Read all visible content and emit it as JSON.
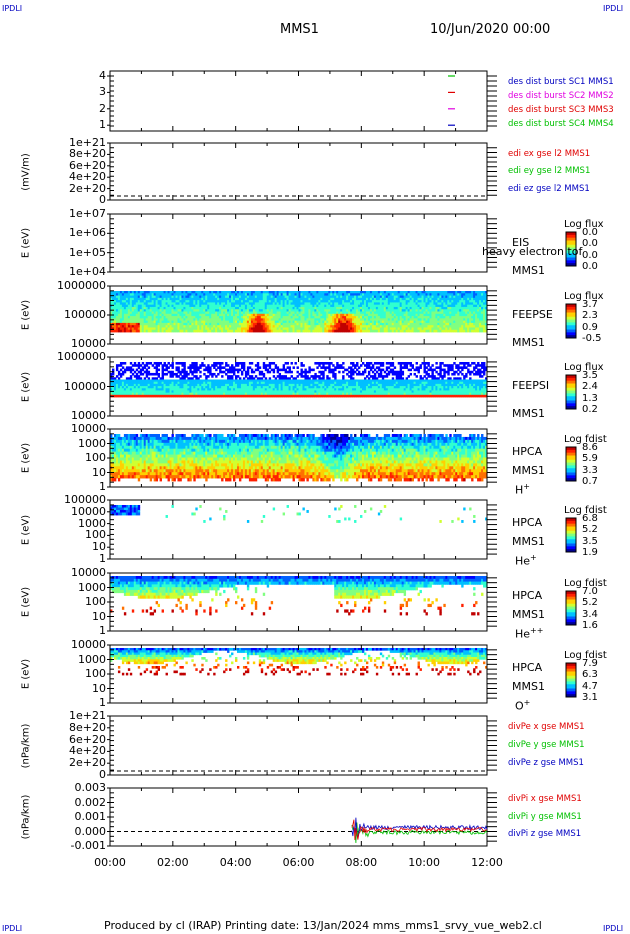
{
  "corner_labels": {
    "top_left": "IPDLI",
    "top_right": "IPDLI",
    "bottom_left": "IPDLI",
    "bottom_right": "IPDLI"
  },
  "header": {
    "mission": "MMS1",
    "datetime": "10/Jun/2020 00:00"
  },
  "footer": {
    "text": "Produced by cl (IRAP)   Printing date: 13/Jan/2024   mms_mms1_srvy_vue_web2.cl"
  },
  "colors": {
    "red": "#e00000",
    "green": "#00c000",
    "blue": "#0000c0",
    "magenta": "#e000e0"
  },
  "chart_data": {
    "type": "multi-panel time series",
    "x_range": [
      "00:00",
      "12:00"
    ],
    "x_ticks": [
      "00:00",
      "02:00",
      "04:00",
      "06:00",
      "08:00",
      "10:00",
      "12:00"
    ],
    "panels": [
      {
        "name": "burst",
        "ylabel": "",
        "yticks": [
          "4",
          "3",
          "2",
          "1"
        ],
        "legend": [
          {
            "text": "des dist burst SC1 MMS1",
            "color": "#0000c0"
          },
          {
            "text": "des dist burst SC2 MMS2",
            "color": "#e000e0"
          },
          {
            "text": "des dist burst SC3 MMS3",
            "color": "#e00000"
          },
          {
            "text": "des dist burst SC4 MMS4",
            "color": "#00c000"
          }
        ],
        "markers": [
          {
            "sc": 4,
            "color": "#00c000"
          },
          {
            "sc": 3,
            "color": "#e00000"
          },
          {
            "sc": 2,
            "color": "#e000e0"
          },
          {
            "sc": 1,
            "color": "#0000c0"
          }
        ]
      },
      {
        "name": "edi",
        "ylabel": "(mV/m)",
        "yticks": [
          "1e+21",
          "8e+20",
          "6e+20",
          "4e+20",
          "2e+20",
          "0"
        ],
        "legend": [
          {
            "text": "edi ex gse l2 MMS1",
            "color": "#e00000"
          },
          {
            "text": "edi ey gse l2 MMS1",
            "color": "#00c000"
          },
          {
            "text": "edi ez gse l2 MMS1",
            "color": "#0000c0"
          }
        ]
      },
      {
        "name": "eis",
        "ylabel": "E (eV)",
        "yticks": [
          "1e+07",
          "1e+06",
          "1e+05",
          "1e+04"
        ],
        "instrument": "EIS",
        "extra": "heavy electron tof",
        "sc": "MMS1",
        "cbar_title": "Log flux",
        "cbar_ticks": [
          "0.0",
          "0.0",
          "0.0",
          "0.0"
        ]
      },
      {
        "name": "feepse",
        "ylabel": "E (eV)",
        "yticks": [
          "1000000",
          "100000",
          "10000"
        ],
        "instrument": "FEEPSE",
        "sc": "MMS1",
        "cbar_title": "Log flux",
        "cbar_ticks": [
          "3.7",
          "2.3",
          "0.9",
          "-0.5"
        ]
      },
      {
        "name": "feepsi",
        "ylabel": "E (eV)",
        "yticks": [
          "1000000",
          "100000",
          "10000"
        ],
        "instrument": "FEEPSI",
        "sc": "MMS1",
        "cbar_title": "Log flux",
        "cbar_ticks": [
          "3.5",
          "2.4",
          "1.3",
          "0.2"
        ]
      },
      {
        "name": "hpca_h",
        "ylabel": "E (eV)",
        "yticks": [
          "10000",
          "1000",
          "100",
          "10",
          "1"
        ],
        "instrument": "HPCA",
        "sc": "MMS1",
        "species": "H",
        "charge": "+",
        "cbar_title": "Log fdist",
        "cbar_ticks": [
          "8.6",
          "5.9",
          "3.3",
          "0.7"
        ]
      },
      {
        "name": "hpca_he",
        "ylabel": "E (eV)",
        "yticks": [
          "100000",
          "10000",
          "1000",
          "100",
          "10",
          "1"
        ],
        "instrument": "HPCA",
        "sc": "MMS1",
        "species": "He",
        "charge": "+",
        "cbar_title": "Log fdist",
        "cbar_ticks": [
          "6.8",
          "5.2",
          "3.5",
          "1.9"
        ]
      },
      {
        "name": "hpca_hepp",
        "ylabel": "E (eV)",
        "yticks": [
          "10000",
          "1000",
          "100",
          "10",
          "1"
        ],
        "instrument": "HPCA",
        "sc": "MMS1",
        "species": "He",
        "charge": "++",
        "cbar_title": "Log fdist",
        "cbar_ticks": [
          "7.0",
          "5.2",
          "3.4",
          "1.6"
        ]
      },
      {
        "name": "hpca_o",
        "ylabel": "E (eV)",
        "yticks": [
          "10000",
          "1000",
          "100",
          "10",
          "1"
        ],
        "instrument": "HPCA",
        "sc": "MMS1",
        "species": "O",
        "charge": "+",
        "cbar_title": "Log fdist",
        "cbar_ticks": [
          "7.9",
          "6.3",
          "4.7",
          "3.1"
        ]
      },
      {
        "name": "divpe",
        "ylabel": "(nPa/km)",
        "yticks": [
          "1e+21",
          "8e+20",
          "6e+20",
          "4e+20",
          "2e+20",
          "0"
        ],
        "legend": [
          {
            "text": "divPe x gse MMS1",
            "color": "#e00000"
          },
          {
            "text": "divPe y gse MMS1",
            "color": "#00c000"
          },
          {
            "text": "divPe z gse MMS1",
            "color": "#0000c0"
          }
        ]
      },
      {
        "name": "divpi",
        "ylabel": "(nPa/km)",
        "yticks": [
          "0.003",
          "0.002",
          "0.001",
          "0.000",
          "-0.001"
        ],
        "legend": [
          {
            "text": "divPi x gse MMS1",
            "color": "#e00000"
          },
          {
            "text": "divPi y gse MMS1",
            "color": "#00c000"
          },
          {
            "text": "divPi z gse MMS1",
            "color": "#0000c0"
          }
        ]
      }
    ]
  }
}
